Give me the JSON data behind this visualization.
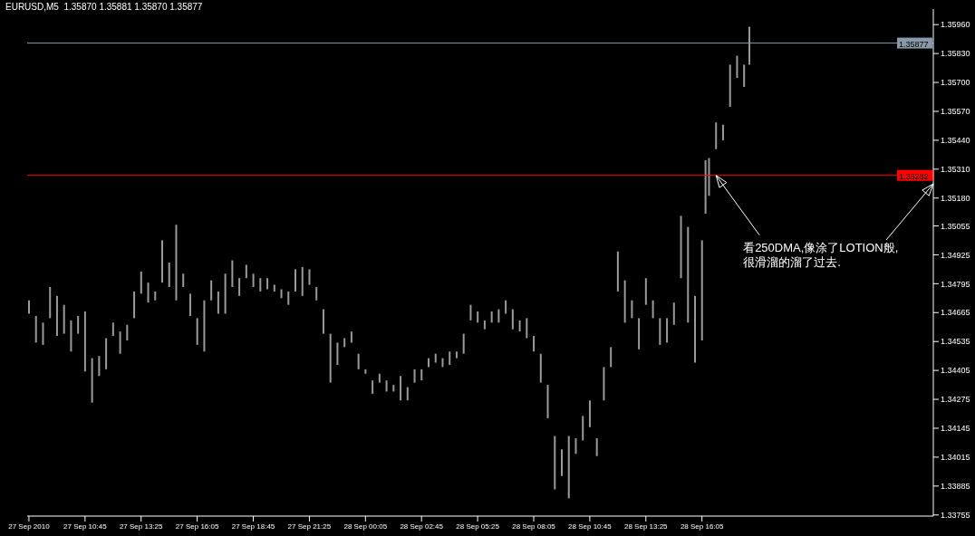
{
  "chart_data": {
    "type": "bar",
    "title": "EURUSD,M5  1.35870 1.35881 1.35870 1.35877",
    "x": [
      "2010-09-27T08:05",
      "2010-09-27T08:25",
      "2010-09-27T08:45",
      "2010-09-27T09:05",
      "2010-09-27T09:25",
      "2010-09-27T09:45",
      "2010-09-27T10:05",
      "2010-09-27T10:25",
      "2010-09-27T10:45",
      "2010-09-27T11:05",
      "2010-09-27T11:25",
      "2010-09-27T11:45",
      "2010-09-27T12:05",
      "2010-09-27T12:25",
      "2010-09-27T12:45",
      "2010-09-27T13:05",
      "2010-09-27T13:25",
      "2010-09-27T13:45",
      "2010-09-27T14:05",
      "2010-09-27T14:25",
      "2010-09-27T14:45",
      "2010-09-27T15:05",
      "2010-09-27T15:25",
      "2010-09-27T15:45",
      "2010-09-27T16:05",
      "2010-09-27T16:25",
      "2010-09-27T16:45",
      "2010-09-27T17:05",
      "2010-09-27T17:25",
      "2010-09-27T17:45",
      "2010-09-27T18:05",
      "2010-09-27T18:25",
      "2010-09-27T18:45",
      "2010-09-27T19:05",
      "2010-09-27T19:25",
      "2010-09-27T19:45",
      "2010-09-27T20:05",
      "2010-09-27T20:25",
      "2010-09-27T20:45",
      "2010-09-27T21:05",
      "2010-09-27T21:25",
      "2010-09-27T21:45",
      "2010-09-27T22:05",
      "2010-09-27T22:25",
      "2010-09-27T22:45",
      "2010-09-27T23:05",
      "2010-09-27T23:25",
      "2010-09-27T23:45",
      "2010-09-28T00:05",
      "2010-09-28T00:25",
      "2010-09-28T00:45",
      "2010-09-28T01:05",
      "2010-09-28T01:25",
      "2010-09-28T01:45",
      "2010-09-28T02:05",
      "2010-09-28T02:25",
      "2010-09-28T02:45",
      "2010-09-28T03:05",
      "2010-09-28T03:25",
      "2010-09-28T03:45",
      "2010-09-28T04:05",
      "2010-09-28T04:25",
      "2010-09-28T04:45",
      "2010-09-28T05:05",
      "2010-09-28T05:25",
      "2010-09-28T05:45",
      "2010-09-28T06:05",
      "2010-09-28T06:25",
      "2010-09-28T06:45",
      "2010-09-28T07:05",
      "2010-09-28T07:25",
      "2010-09-28T07:45",
      "2010-09-28T08:05",
      "2010-09-28T08:25",
      "2010-09-28T08:45",
      "2010-09-28T09:05",
      "2010-09-28T09:25",
      "2010-09-28T09:45",
      "2010-09-28T10:05",
      "2010-09-28T10:25",
      "2010-09-28T10:45",
      "2010-09-28T11:05",
      "2010-09-28T11:25",
      "2010-09-28T11:45",
      "2010-09-28T12:05",
      "2010-09-28T12:25",
      "2010-09-28T12:45",
      "2010-09-28T13:05",
      "2010-09-28T13:25",
      "2010-09-28T13:45",
      "2010-09-28T14:05",
      "2010-09-28T14:25",
      "2010-09-28T14:45",
      "2010-09-28T15:05",
      "2010-09-28T15:25",
      "2010-09-28T15:45",
      "2010-09-28T16:05",
      "2010-09-28T16:15",
      "2010-09-28T16:25",
      "2010-09-28T16:45",
      "2010-09-28T17:05",
      "2010-09-28T17:25",
      "2010-09-28T17:45",
      "2010-09-28T18:05",
      "2010-09-28T18:20"
    ],
    "base": [
      1.3466,
      1.3453,
      1.3452,
      1.3464,
      1.3456,
      1.3457,
      1.3449,
      1.3457,
      1.344,
      1.3426,
      1.3438,
      1.3441,
      1.3456,
      1.3448,
      1.3454,
      1.3464,
      1.3475,
      1.3471,
      1.3472,
      1.348,
      1.3478,
      1.3472,
      1.3478,
      1.3465,
      1.3452,
      1.3449,
      1.3472,
      1.3466,
      1.3466,
      1.3478,
      1.3474,
      1.3482,
      1.3478,
      1.3476,
      1.3477,
      1.3476,
      1.3473,
      1.347,
      1.3476,
      1.3474,
      1.3479,
      1.3472,
      1.3457,
      1.3435,
      1.3443,
      1.3451,
      1.3453,
      1.3441,
      1.3439,
      1.343,
      1.3435,
      1.3431,
      1.3431,
      1.3427,
      1.3427,
      1.3435,
      1.3436,
      1.3442,
      1.3444,
      1.3442,
      1.3443,
      1.3446,
      1.3448,
      1.3463,
      1.3462,
      1.3459,
      1.3462,
      1.3462,
      1.3466,
      1.3459,
      1.3458,
      1.3455,
      1.3449,
      1.3435,
      1.3419,
      1.3387,
      1.3393,
      1.3383,
      1.3403,
      1.3409,
      1.3415,
      1.3402,
      1.3427,
      1.3442,
      1.3476,
      1.3462,
      1.3464,
      1.345,
      1.347,
      1.3464,
      1.3452,
      1.3453,
      1.3461,
      1.3482,
      1.3462,
      1.3444,
      1.3454,
      1.3511,
      1.3519,
      1.354,
      1.3544,
      1.3559,
      1.3572,
      1.3568,
      1.3578
    ],
    "values": [
      0.0006,
      0.0012,
      0.001,
      0.0014,
      0.0018,
      0.0013,
      0.0014,
      0.0008,
      0.0027,
      0.002,
      0.0009,
      0.0014,
      0.0006,
      0.001,
      0.0007,
      0.0012,
      0.001,
      0.0009,
      0.0004,
      0.0019,
      0.0011,
      0.0034,
      0.0006,
      0.001,
      0.0012,
      0.0023,
      0.0009,
      0.001,
      0.0018,
      0.0012,
      0.0008,
      0.0006,
      0.0006,
      0.0006,
      0.0005,
      0.0003,
      0.0004,
      0.0006,
      0.001,
      0.0013,
      0.0007,
      0.0006,
      0.0011,
      0.0022,
      0.001,
      0.0004,
      0.0005,
      0.0007,
      0.0002,
      0.0006,
      0.0004,
      0.0005,
      0.0003,
      0.0011,
      0.0006,
      0.0006,
      0.0005,
      0.0004,
      0.0004,
      0.0004,
      0.0006,
      0.0003,
      0.0009,
      0.0007,
      0.0005,
      0.0004,
      0.0005,
      0.0006,
      0.0006,
      0.0009,
      0.0005,
      0.0009,
      0.0007,
      0.0013,
      0.0015,
      0.0024,
      0.0012,
      0.0028,
      0.0007,
      0.0011,
      0.0012,
      0.0008,
      0.0015,
      0.0009,
      0.0018,
      0.0019,
      0.0008,
      0.0014,
      0.0012,
      0.0008,
      0.0012,
      0.0011,
      0.001,
      0.0028,
      0.0043,
      0.003,
      0.0045,
      0.0024,
      0.0017,
      0.0012,
      0.0007,
      0.0019,
      0.001,
      0.001,
      0.0017
    ],
    "color": "#9a9a9a",
    "xlim": [
      "2010-09-27T08:00",
      "2010-09-29T03:05"
    ],
    "xticks": [
      {
        "value": "2010-09-27T08:05",
        "label": "27 Sep 2010"
      },
      {
        "value": "2010-09-27T10:45",
        "label": "27 Sep 10:45"
      },
      {
        "value": "2010-09-27T13:25",
        "label": "27 Sep 13:25"
      },
      {
        "value": "2010-09-27T16:05",
        "label": "27 Sep 16:05"
      },
      {
        "value": "2010-09-27T18:45",
        "label": "27 Sep 18:45"
      },
      {
        "value": "2010-09-27T21:25",
        "label": "27 Sep 21:25"
      },
      {
        "value": "2010-09-28T00:05",
        "label": "28 Sep 00:05"
      },
      {
        "value": "2010-09-28T02:45",
        "label": "28 Sep 02:45"
      },
      {
        "value": "2010-09-28T05:25",
        "label": "28 Sep 05:25"
      },
      {
        "value": "2010-09-28T08:05",
        "label": "28 Sep 08:05"
      },
      {
        "value": "2010-09-28T10:45",
        "label": "28 Sep 10:45"
      },
      {
        "value": "2010-09-28T13:25",
        "label": "28 Sep 13:25"
      },
      {
        "value": "2010-09-28T16:05",
        "label": "28 Sep 16:05"
      }
    ],
    "ylim": [
      1.3375,
      1.3603
    ],
    "yticks": [
      {
        "value": 1.3596,
        "label": "1.35960"
      },
      {
        "value": 1.3583,
        "label": "1.35830"
      },
      {
        "value": 1.357,
        "label": "1.35700"
      },
      {
        "value": 1.3557,
        "label": "1.35570"
      },
      {
        "value": 1.3544,
        "label": "1.35440"
      },
      {
        "value": 1.3531,
        "label": "1.35310"
      },
      {
        "value": 1.3518,
        "label": "1.35180"
      },
      {
        "value": 1.35055,
        "label": "1.35055"
      },
      {
        "value": 1.34925,
        "label": "1.34925"
      },
      {
        "value": 1.34795,
        "label": "1.34795"
      },
      {
        "value": 1.34665,
        "label": "1.34665"
      },
      {
        "value": 1.34535,
        "label": "1.34535"
      },
      {
        "value": 1.34405,
        "label": "1.34405"
      },
      {
        "value": 1.34275,
        "label": "1.34275"
      },
      {
        "value": 1.34145,
        "label": "1.34145"
      },
      {
        "value": 1.34015,
        "label": "1.34015"
      },
      {
        "value": 1.33885,
        "label": "1.33885"
      },
      {
        "value": 1.33755,
        "label": "1.33755"
      }
    ],
    "ref_lines": [
      {
        "axis": "y",
        "value": 1.35877,
        "label": "1.35877",
        "color": "#8899aa"
      },
      {
        "axis": "y",
        "value": 1.35282,
        "label": "1.35282",
        "color": "#ff0000"
      }
    ],
    "annotations": [
      {
        "text": "看250DMA,像涂了LOTION般,\n很滑溜的溜了过去.",
        "x": "2010-09-28T16:45",
        "y": 1.35282
      }
    ]
  }
}
